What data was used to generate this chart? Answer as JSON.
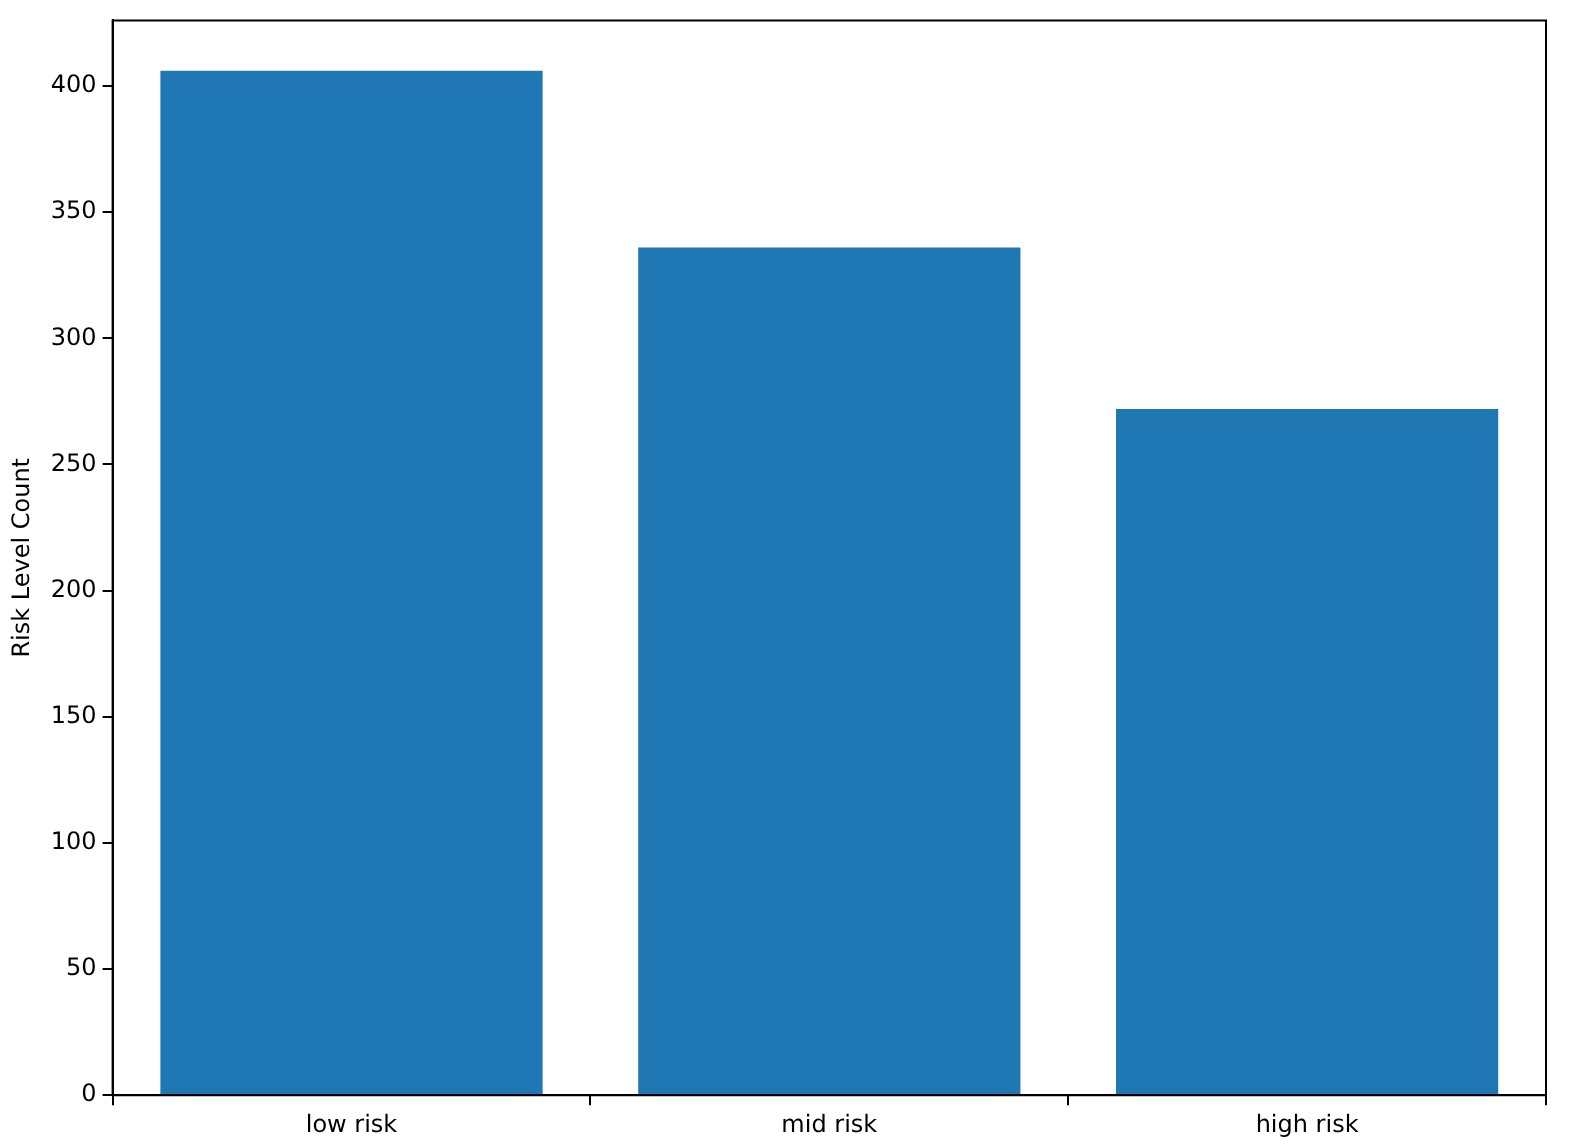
{
  "chart_data": {
    "type": "bar",
    "ylabel": "Risk Level Count",
    "categories": [
      "low risk",
      "mid risk",
      "high risk"
    ],
    "values": [
      406,
      336,
      272
    ],
    "color": "#1f77b4",
    "ylim": [
      0,
      426
    ],
    "yticks": [
      0,
      50,
      100,
      150,
      200,
      250,
      300,
      350,
      400
    ],
    "grid": false,
    "legend": false
  }
}
